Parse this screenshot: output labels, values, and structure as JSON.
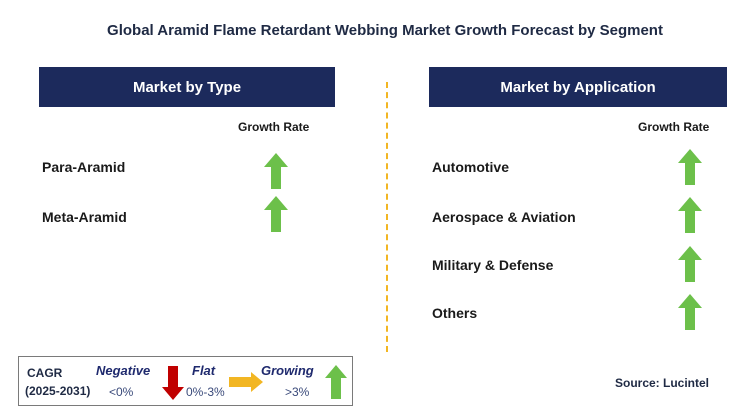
{
  "title": "Global Aramid Flame Retardant Webbing Market Growth Forecast by Segment",
  "left_panel": {
    "header": "Market by Type",
    "growth_rate_label": "Growth Rate",
    "rows": [
      {
        "label": "Para-Aramid",
        "trend": "growing"
      },
      {
        "label": "Meta-Aramid",
        "trend": "growing"
      }
    ]
  },
  "right_panel": {
    "header": "Market by Application",
    "growth_rate_label": "Growth Rate",
    "rows": [
      {
        "label": "Automotive",
        "trend": "growing"
      },
      {
        "label": "Aerospace & Aviation",
        "trend": "growing"
      },
      {
        "label": "Military & Defense",
        "trend": "growing"
      },
      {
        "label": "Others",
        "trend": "growing"
      }
    ]
  },
  "legend": {
    "cagr": "CAGR",
    "period": "(2025-2031)",
    "negative_label": "Negative",
    "negative_value": "<0%",
    "flat_label": "Flat",
    "flat_value": "0%-3%",
    "growing_label": "Growing",
    "growing_value": ">3%"
  },
  "source": "Source: Lucintel",
  "colors": {
    "header_bg": "#1c2a5c",
    "growing": "#6cc04a",
    "negative": "#c00000",
    "flat": "#f2b623",
    "divider": "#f2b623"
  }
}
